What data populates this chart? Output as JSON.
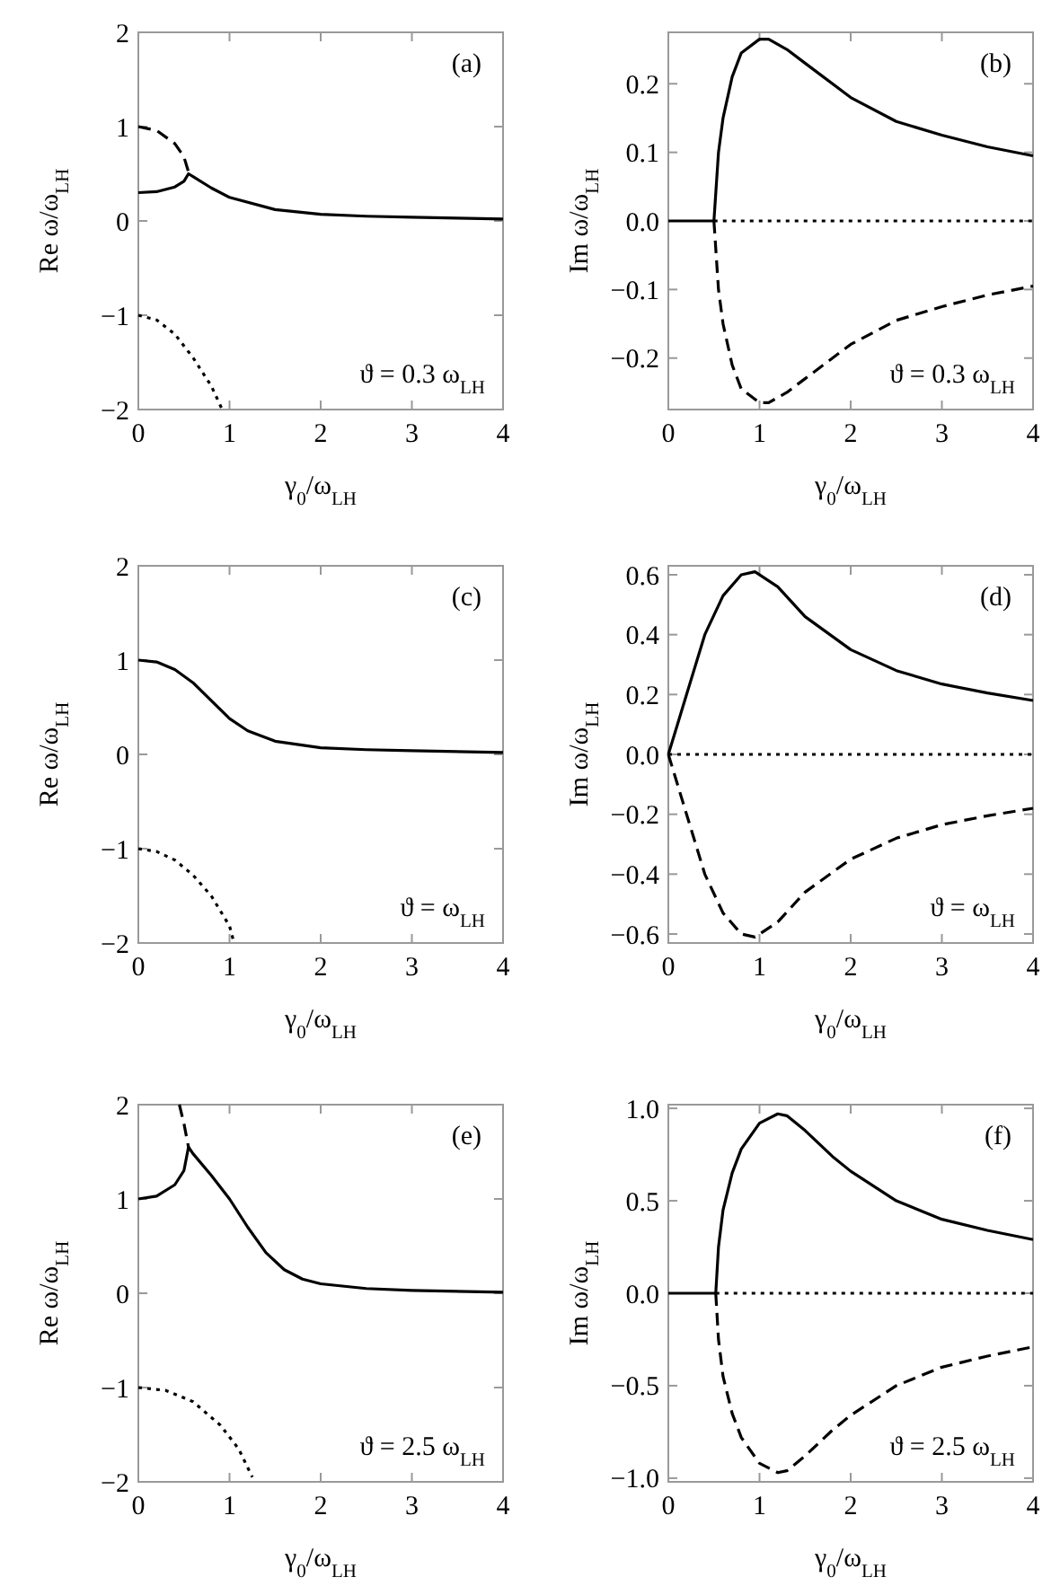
{
  "chart_data": [
    {
      "type": "line",
      "ylabel": "Re ω/ω$_{LH}$",
      "xlabel": "γ$_{0}$/ω$_{LH}$",
      "annotations": [
        "(a)",
        "ϑ = 0.3 ω$_{LH}$"
      ],
      "xlim": [
        0,
        4
      ],
      "xticks": [
        0,
        1,
        2,
        3,
        4
      ],
      "ylim": [
        -2,
        2
      ],
      "yticks": [
        -2,
        -1,
        0,
        1,
        2
      ],
      "series": [
        {
          "color": "#000000",
          "line_style": "solid",
          "x": [
            0,
            0.2,
            0.4,
            0.5,
            0.55,
            0.6,
            0.8,
            1.0,
            1.5,
            2,
            2.5,
            3,
            3.5,
            4
          ],
          "values": [
            0.3,
            0.31,
            0.36,
            0.42,
            0.5,
            0.47,
            0.35,
            0.25,
            0.12,
            0.07,
            0.05,
            0.04,
            0.03,
            0.02
          ]
        },
        {
          "color": "#000000",
          "line_style": "dashed",
          "x": [
            0,
            0.2,
            0.4,
            0.5,
            0.55
          ],
          "values": [
            1.0,
            0.96,
            0.82,
            0.68,
            0.52
          ]
        },
        {
          "color": "#000000",
          "line_style": "dotted",
          "x": [
            0,
            0.2,
            0.4,
            0.6,
            0.8,
            0.92
          ],
          "values": [
            -1,
            -1.05,
            -1.2,
            -1.45,
            -1.75,
            -2
          ]
        }
      ]
    },
    {
      "type": "line",
      "ylabel": "Im ω/ω$_{LH}$",
      "xlabel": "γ$_{0}$/ω$_{LH}$",
      "annotations": [
        "(b)",
        "ϑ = 0.3 ω$_{LH}$"
      ],
      "xlim": [
        0,
        4
      ],
      "xticks": [
        0,
        1,
        2,
        3,
        4
      ],
      "ylim": [
        -0.275,
        0.275
      ],
      "yticks": [
        {
          "value": -0.2,
          "label": "−0.2"
        },
        {
          "value": -0.1,
          "label": "−0.1"
        },
        {
          "value": 0,
          "label": "0.0"
        },
        {
          "value": 0.1,
          "label": "0.1"
        },
        {
          "value": 0.2,
          "label": "0.2"
        }
      ],
      "series": [
        {
          "color": "#000000",
          "line_style": "solid",
          "x": [
            0,
            0.5,
            0.55,
            0.6,
            0.7,
            0.8,
            1.0,
            1.1,
            1.3,
            1.5,
            2,
            2.5,
            3,
            3.5,
            4
          ],
          "values": [
            0,
            0,
            0.1,
            0.15,
            0.21,
            0.245,
            0.265,
            0.265,
            0.25,
            0.23,
            0.18,
            0.145,
            0.125,
            0.108,
            0.095
          ]
        },
        {
          "color": "#000000",
          "line_style": "dashed",
          "x": [
            0.5,
            0.55,
            0.6,
            0.7,
            0.8,
            1.0,
            1.1,
            1.3,
            1.5,
            2,
            2.5,
            3,
            3.5,
            4
          ],
          "values": [
            0,
            -0.1,
            -0.15,
            -0.21,
            -0.245,
            -0.265,
            -0.265,
            -0.25,
            -0.23,
            -0.18,
            -0.145,
            -0.125,
            -0.108,
            -0.095
          ]
        },
        {
          "color": "#000000",
          "line_style": "dotted",
          "x": [
            0.5,
            4
          ],
          "values": [
            0,
            0
          ]
        }
      ]
    },
    {
      "type": "line",
      "ylabel": "Re ω/ω$_{LH}$",
      "xlabel": "γ$_{0}$/ω$_{LH}$",
      "annotations": [
        "(c)",
        "ϑ = ω$_{LH}$"
      ],
      "xlim": [
        0,
        4
      ],
      "xticks": [
        0,
        1,
        2,
        3,
        4
      ],
      "ylim": [
        -2,
        2
      ],
      "yticks": [
        -2,
        -1,
        0,
        1,
        2
      ],
      "series": [
        {
          "color": "#000000",
          "line_style": "solid",
          "x": [
            0,
            0.2,
            0.4,
            0.6,
            0.8,
            1.0,
            1.2,
            1.5,
            2,
            2.5,
            3,
            4
          ],
          "values": [
            1,
            0.98,
            0.9,
            0.76,
            0.57,
            0.38,
            0.25,
            0.14,
            0.07,
            0.05,
            0.04,
            0.02
          ]
        },
        {
          "color": "#000000",
          "line_style": "dotted",
          "x": [
            0,
            0.2,
            0.4,
            0.6,
            0.8,
            1.0,
            1.05
          ],
          "values": [
            -1,
            -1.03,
            -1.12,
            -1.28,
            -1.5,
            -1.82,
            -2
          ]
        }
      ]
    },
    {
      "type": "line",
      "ylabel": "Im ω/ω$_{LH}$",
      "xlabel": "γ$_{0}$/ω$_{LH}$",
      "annotations": [
        "(d)",
        "ϑ = ω$_{LH}$"
      ],
      "xlim": [
        0,
        4
      ],
      "xticks": [
        0,
        1,
        2,
        3,
        4
      ],
      "ylim": [
        -0.63,
        0.63
      ],
      "yticks": [
        {
          "value": -0.6,
          "label": "−0.6"
        },
        {
          "value": -0.4,
          "label": "−0.4"
        },
        {
          "value": -0.2,
          "label": "−0.2"
        },
        {
          "value": 0,
          "label": "0.0"
        },
        {
          "value": 0.2,
          "label": "0.2"
        },
        {
          "value": 0.4,
          "label": "0.4"
        },
        {
          "value": 0.6,
          "label": "0.6"
        }
      ],
      "series": [
        {
          "color": "#000000",
          "line_style": "solid",
          "x": [
            0,
            0.1,
            0.2,
            0.4,
            0.6,
            0.8,
            0.95,
            1.2,
            1.5,
            2,
            2.5,
            3,
            3.5,
            4
          ],
          "values": [
            0,
            0.1,
            0.2,
            0.4,
            0.53,
            0.6,
            0.61,
            0.56,
            0.46,
            0.35,
            0.28,
            0.235,
            0.205,
            0.18
          ]
        },
        {
          "color": "#000000",
          "line_style": "dashed",
          "x": [
            0,
            0.1,
            0.2,
            0.4,
            0.6,
            0.8,
            0.95,
            1.2,
            1.5,
            2,
            2.5,
            3,
            3.5,
            4
          ],
          "values": [
            0,
            -0.1,
            -0.2,
            -0.4,
            -0.53,
            -0.6,
            -0.61,
            -0.56,
            -0.46,
            -0.35,
            -0.28,
            -0.235,
            -0.205,
            -0.18
          ]
        },
        {
          "color": "#000000",
          "line_style": "dotted",
          "x": [
            0,
            4
          ],
          "values": [
            0,
            0
          ]
        }
      ]
    },
    {
      "type": "line",
      "ylabel": "Re ω/ω$_{LH}$",
      "xlabel": "γ$_{0}$/ω$_{LH}$",
      "annotations": [
        "(e)",
        "ϑ = 2.5 ω$_{LH}$"
      ],
      "xlim": [
        0,
        4
      ],
      "xticks": [
        0,
        1,
        2,
        3,
        4
      ],
      "ylim": [
        -2,
        2
      ],
      "yticks": [
        -2,
        -1,
        0,
        1,
        2
      ],
      "series": [
        {
          "color": "#000000",
          "line_style": "solid",
          "x": [
            0,
            0.2,
            0.4,
            0.5,
            0.55,
            0.6,
            0.8,
            1.0,
            1.2,
            1.4,
            1.6,
            1.8,
            2,
            2.5,
            3,
            4
          ],
          "values": [
            1,
            1.03,
            1.15,
            1.3,
            1.55,
            1.48,
            1.25,
            1.0,
            0.7,
            0.43,
            0.25,
            0.15,
            0.1,
            0.05,
            0.03,
            0.01
          ]
        },
        {
          "color": "#000000",
          "line_style": "dashed",
          "x": [
            0.45,
            0.5,
            0.55
          ],
          "values": [
            2,
            1.8,
            1.55
          ]
        },
        {
          "color": "#000000",
          "line_style": "dotted",
          "x": [
            0,
            0.3,
            0.6,
            0.9,
            1.1,
            1.25
          ],
          "values": [
            -1,
            -1.03,
            -1.15,
            -1.4,
            -1.65,
            -1.95
          ]
        }
      ]
    },
    {
      "type": "line",
      "ylabel": "Im ω/ω$_{LH}$",
      "xlabel": "γ$_{0}$/ω$_{LH}$",
      "annotations": [
        "(f)",
        "ϑ = 2.5 ω$_{LH}$"
      ],
      "xlim": [
        0,
        4
      ],
      "xticks": [
        0,
        1,
        2,
        3,
        4
      ],
      "ylim": [
        -1.02,
        1.02
      ],
      "yticks": [
        {
          "value": -1,
          "label": "−1.0"
        },
        {
          "value": -0.5,
          "label": "−0.5"
        },
        {
          "value": 0,
          "label": "0.0"
        },
        {
          "value": 0.5,
          "label": "0.5"
        },
        {
          "value": 1,
          "label": "1.0"
        }
      ],
      "series": [
        {
          "color": "#000000",
          "line_style": "solid",
          "x": [
            0,
            0.52,
            0.55,
            0.6,
            0.7,
            0.8,
            1.0,
            1.2,
            1.3,
            1.5,
            1.8,
            2,
            2.5,
            3,
            3.5,
            4
          ],
          "values": [
            0,
            0,
            0.25,
            0.45,
            0.65,
            0.78,
            0.92,
            0.97,
            0.96,
            0.88,
            0.74,
            0.66,
            0.5,
            0.4,
            0.34,
            0.29
          ]
        },
        {
          "color": "#000000",
          "line_style": "dashed",
          "x": [
            0.52,
            0.55,
            0.6,
            0.7,
            0.8,
            1.0,
            1.2,
            1.3,
            1.5,
            1.8,
            2,
            2.5,
            3,
            3.5,
            4
          ],
          "values": [
            0,
            -0.25,
            -0.45,
            -0.65,
            -0.78,
            -0.92,
            -0.97,
            -0.96,
            -0.88,
            -0.74,
            -0.66,
            -0.5,
            -0.4,
            -0.34,
            -0.29
          ]
        },
        {
          "color": "#000000",
          "line_style": "dotted",
          "x": [
            0.52,
            4
          ],
          "values": [
            0,
            0
          ]
        }
      ]
    }
  ]
}
